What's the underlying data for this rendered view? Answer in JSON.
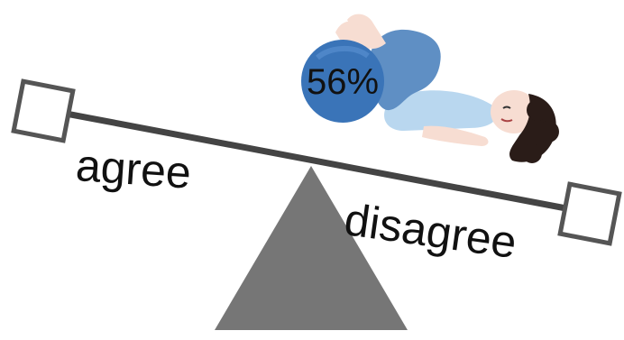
{
  "seesaw": {
    "left_label": "agree",
    "right_label": "disagree",
    "ball_value": "56%"
  },
  "colors": {
    "beam": "#444444",
    "fulcrum": "#767676",
    "box_stroke": "#555555",
    "ball": "#3a74b8",
    "shirt": "#b9d7ef",
    "pants": "#5f8fc4",
    "hair": "#2a1c18",
    "skin": "#f7ddd2"
  },
  "icons": {
    "person": "person-lying-icon",
    "ball": "ball-icon",
    "box": "box-icon"
  }
}
